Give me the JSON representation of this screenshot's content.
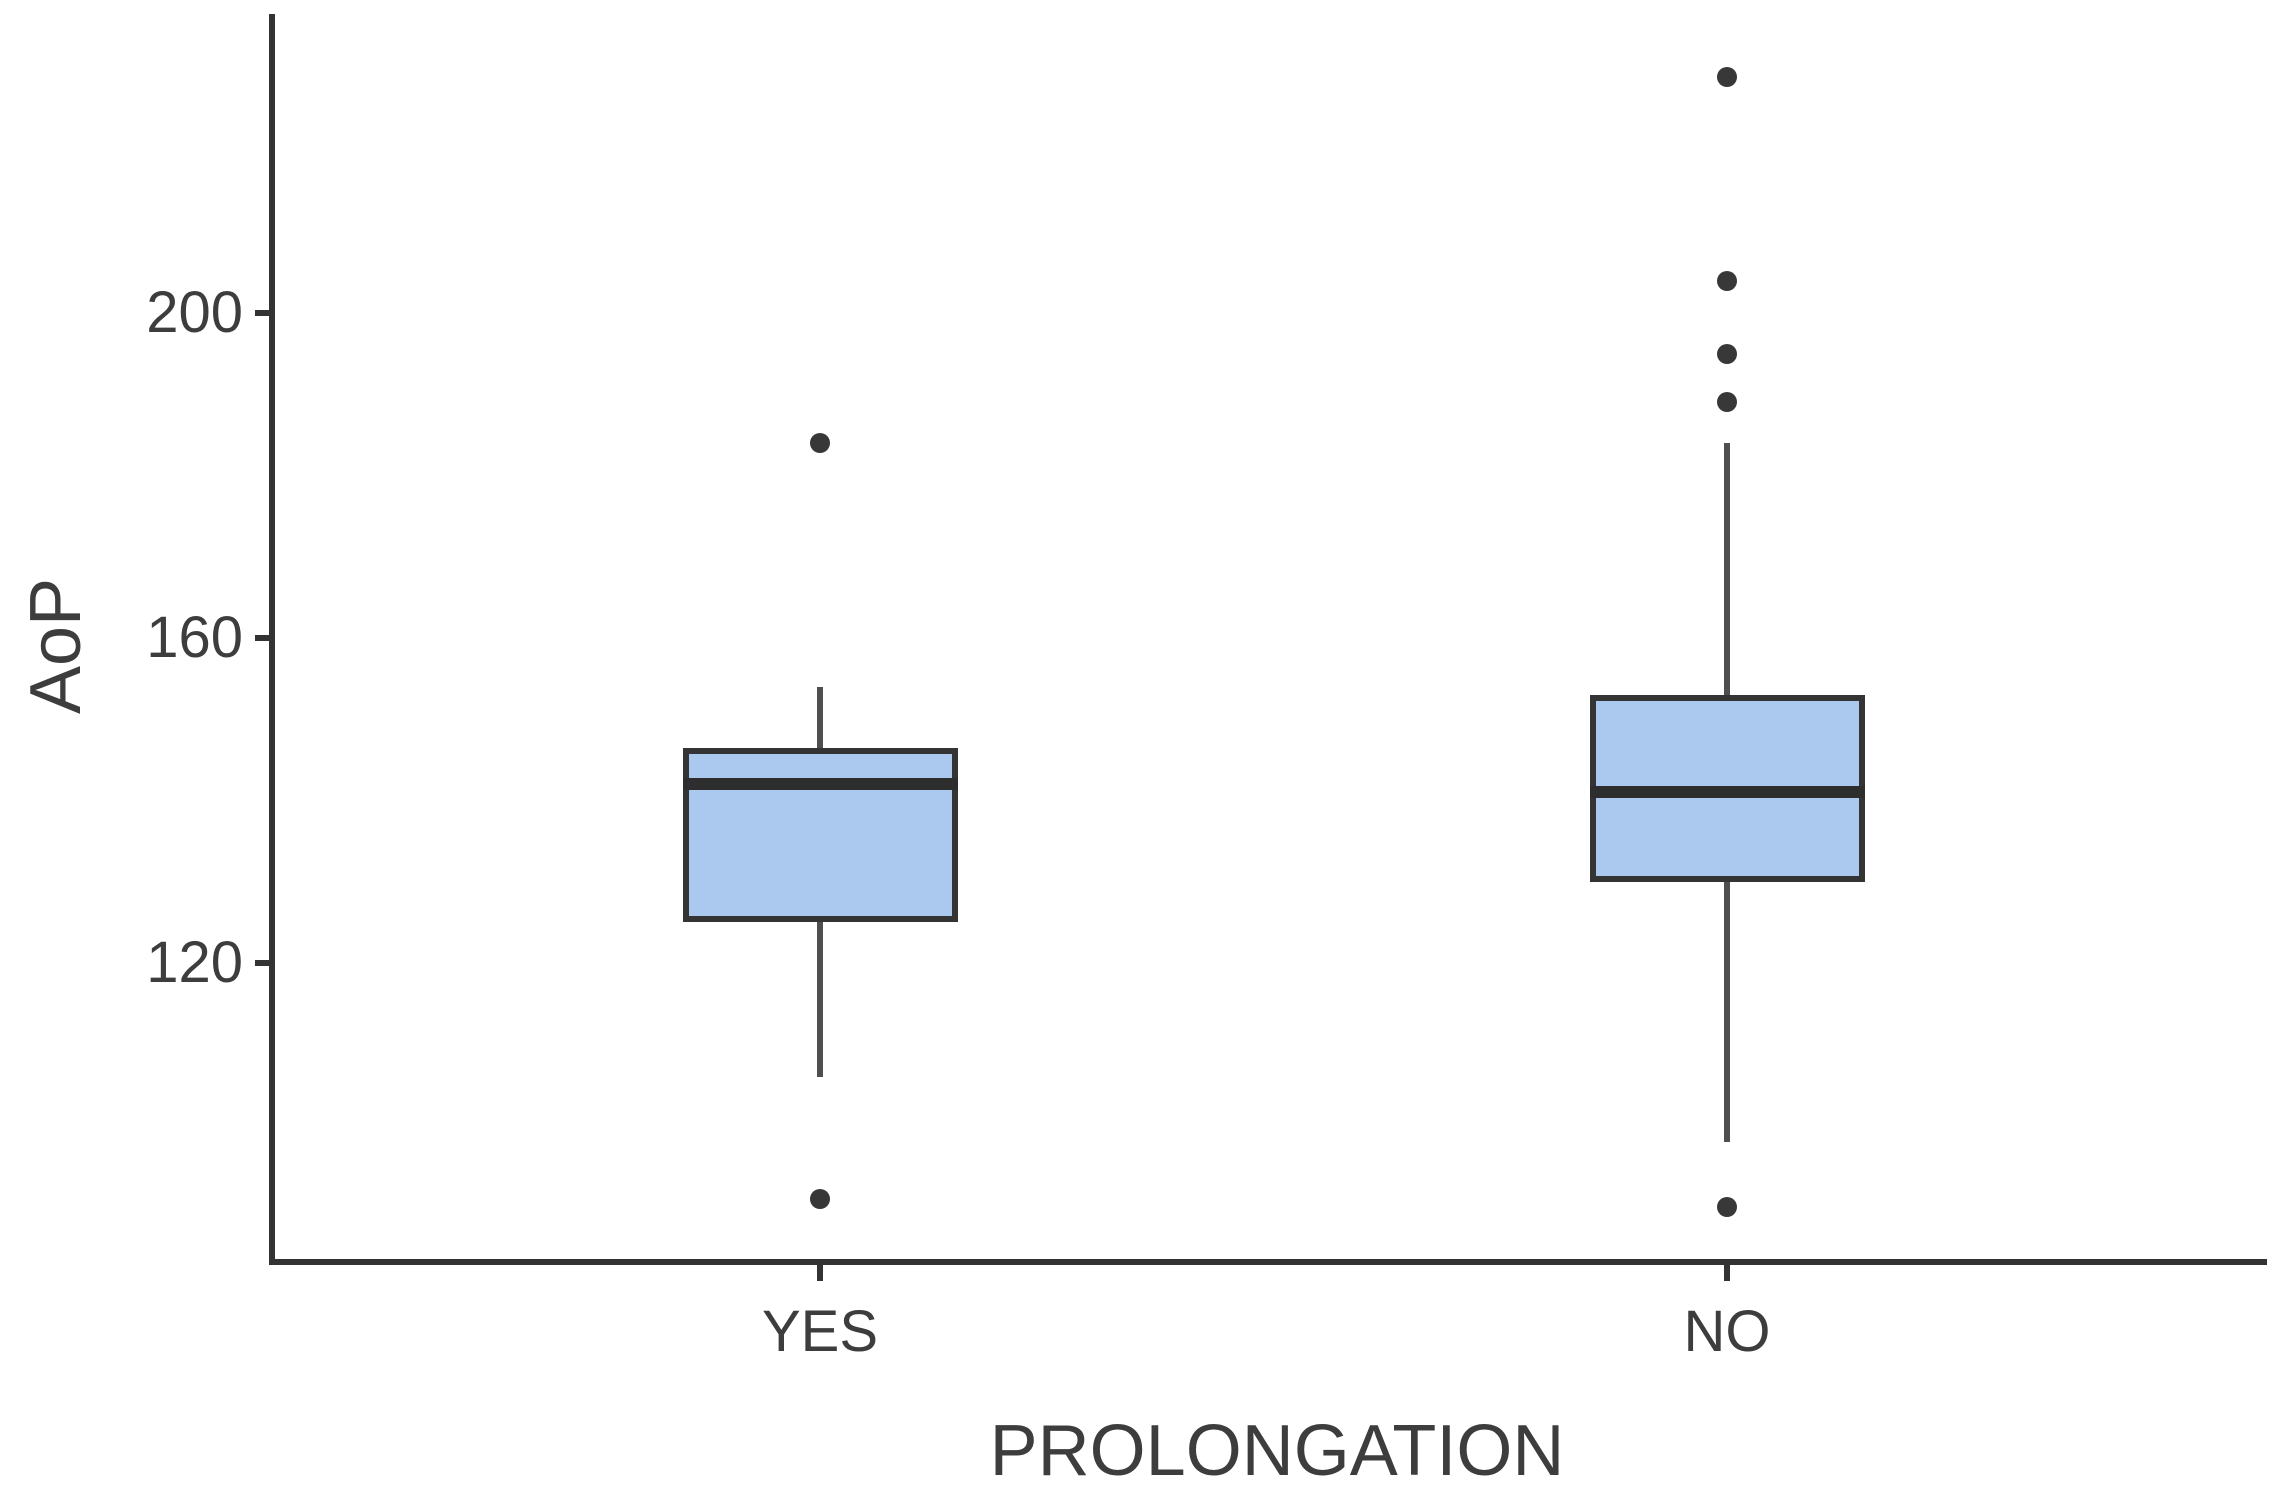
{
  "chart_data": {
    "type": "boxplot",
    "title": "",
    "xlabel": "PROLONGATION",
    "ylabel": "AoP",
    "categories": [
      "YES",
      "NO"
    ],
    "y_ticks": [
      120,
      160,
      200
    ],
    "ylim": [
      83,
      237
    ],
    "grid": false,
    "legend": "none",
    "series": [
      {
        "category": "YES",
        "whisker_low": 106,
        "q1": 125,
        "median": 142,
        "q3": 146.5,
        "whisker_high": 154,
        "outliers": [
          184,
          91
        ]
      },
      {
        "category": "NO",
        "whisker_low": 98,
        "q1": 130,
        "median": 141,
        "q3": 153,
        "whisker_high": 184,
        "outliers": [
          229,
          204,
          195,
          189,
          90
        ]
      }
    ]
  },
  "style": {
    "box_fill": "#abc8ee",
    "box_stroke": "#343434",
    "median_color": "#2e2e2e",
    "whisker_color": "#4f4f4f",
    "outlier_color": "#383838",
    "axis_color": "#333333",
    "text_color": "#3d3d3d",
    "background": "#ffffff"
  }
}
